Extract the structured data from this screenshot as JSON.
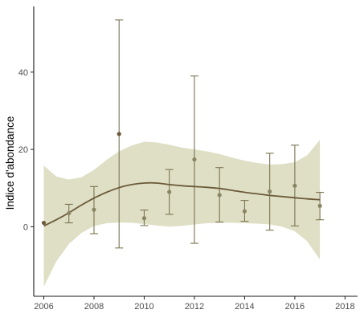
{
  "chart_data": {
    "type": "scatter",
    "title": "",
    "xlabel": "",
    "ylabel": "Indice d'abondance",
    "xlim": [
      2005.6,
      2018.5
    ],
    "ylim": [
      -18,
      57
    ],
    "grid": false,
    "legend": "none",
    "x_ticks": [
      {
        "value": 2006,
        "label": "2006"
      },
      {
        "value": 2008,
        "label": "2008"
      },
      {
        "value": 2010,
        "label": "2010"
      },
      {
        "value": 2012,
        "label": "2012"
      },
      {
        "value": 2014,
        "label": "2014"
      },
      {
        "value": 2016,
        "label": "2016"
      },
      {
        "value": 2018,
        "label": "2018"
      }
    ],
    "y_ticks": [
      {
        "value": 0,
        "label": "0"
      },
      {
        "value": 20,
        "label": "20"
      },
      {
        "value": 40,
        "label": "40"
      }
    ],
    "points": [
      {
        "x": 2006,
        "y": 1.0,
        "lower": 1.0,
        "upper": 1.0
      },
      {
        "x": 2007,
        "y": 3.5,
        "lower": 1.0,
        "upper": 5.8
      },
      {
        "x": 2008,
        "y": 4.4,
        "lower": -1.8,
        "upper": 10.4
      },
      {
        "x": 2009,
        "y": 24.0,
        "lower": -5.5,
        "upper": 53.5
      },
      {
        "x": 2010,
        "y": 2.2,
        "lower": 0.3,
        "upper": 4.3
      },
      {
        "x": 2011,
        "y": 9.0,
        "lower": 3.2,
        "upper": 14.8
      },
      {
        "x": 2012,
        "y": 17.4,
        "lower": -4.3,
        "upper": 39.0
      },
      {
        "x": 2013,
        "y": 8.2,
        "lower": 1.2,
        "upper": 15.3
      },
      {
        "x": 2014,
        "y": 4.0,
        "lower": 1.4,
        "upper": 6.8
      },
      {
        "x": 2015,
        "y": 9.1,
        "lower": -0.9,
        "upper": 19.0
      },
      {
        "x": 2016,
        "y": 10.6,
        "lower": 0.2,
        "upper": 21.1
      },
      {
        "x": 2017,
        "y": 5.4,
        "lower": 1.8,
        "upper": 8.9
      }
    ],
    "trend": {
      "x": [
        2006,
        2006.5,
        2007,
        2007.5,
        2008,
        2008.5,
        2009,
        2009.5,
        2010,
        2010.5,
        2011,
        2011.5,
        2012,
        2012.5,
        2013,
        2013.5,
        2014,
        2014.5,
        2015,
        2015.5,
        2016,
        2016.5,
        2017
      ],
      "y": [
        0.2,
        1.8,
        3.6,
        5.6,
        7.4,
        8.9,
        10.1,
        10.9,
        11.3,
        11.3,
        10.9,
        10.6,
        10.4,
        10.2,
        9.9,
        9.4,
        8.9,
        8.5,
        8.1,
        7.8,
        7.5,
        7.2,
        7.0
      ],
      "ci_lower": [
        -15.5,
        -9.0,
        -4.5,
        -1.6,
        0.2,
        0.9,
        1.1,
        1.0,
        0.7,
        0.3,
        0.0,
        0.2,
        0.6,
        0.9,
        1.0,
        1.0,
        0.9,
        0.8,
        0.6,
        0.0,
        -1.2,
        -3.8,
        -8.5
      ],
      "ci_upper": [
        15.8,
        13.0,
        12.2,
        12.8,
        14.7,
        17.3,
        19.5,
        21.0,
        22.0,
        21.8,
        21.2,
        20.5,
        20.0,
        19.5,
        18.8,
        17.9,
        17.1,
        16.5,
        16.1,
        16.2,
        16.7,
        18.5,
        22.5
      ]
    },
    "colors": {
      "ribbon": "#dfdfc6",
      "trend_line": "#6b5a3a",
      "points": "#8a8663",
      "error_bars": "#7a7450",
      "axis": "#1a1a1a",
      "tick_label": "#4d4d4d"
    }
  }
}
